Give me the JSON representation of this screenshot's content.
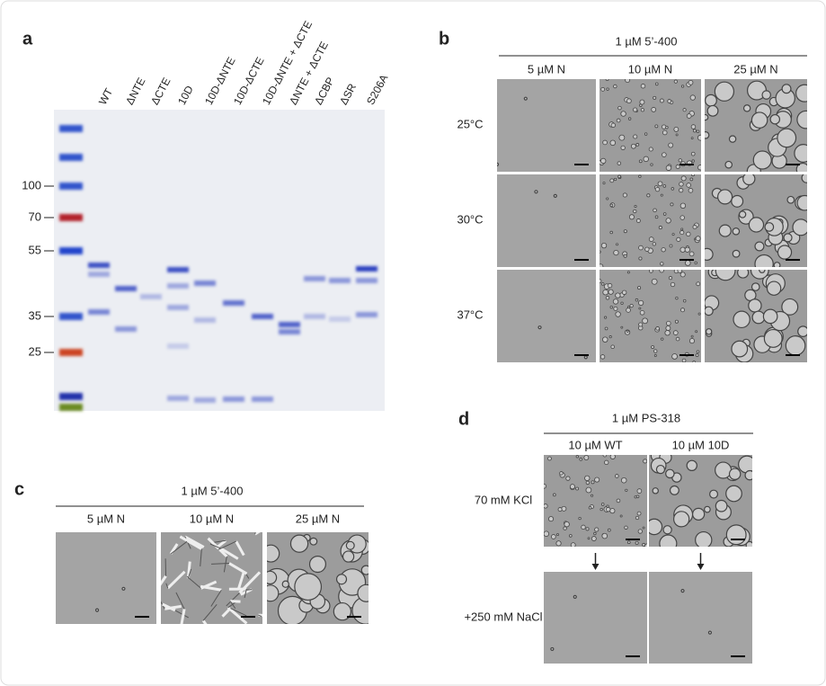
{
  "panel_a": {
    "label": "a",
    "lanes": [
      "WT",
      "ΔNTE",
      "ΔCTE",
      "10D",
      "10D-ΔNTE",
      "10D-ΔCTE",
      "10D-ΔNTE + ΔCTE",
      "ΔNTE + ΔCTE",
      "ΔCBP",
      "ΔSR",
      "S206A"
    ],
    "markers": [
      100,
      70,
      55,
      35,
      25
    ]
  },
  "panel_b": {
    "label": "b",
    "header": "1 µM 5’-400",
    "columns": [
      "5 µM N",
      "10 µM N",
      "25 µM N"
    ],
    "rows": [
      "25°C",
      "30°C",
      "37°C"
    ]
  },
  "panel_c": {
    "label": "c",
    "header": "1 µM 5’-400",
    "columns": [
      "5 µM N",
      "10 µM N",
      "25 µM N"
    ]
  },
  "panel_d": {
    "label": "d",
    "header": "1 µM PS-318",
    "columns": [
      "10 µM WT",
      "10 µM 10D"
    ],
    "rows": [
      "70 mM KCl",
      "+250 mM NaCl"
    ]
  }
}
